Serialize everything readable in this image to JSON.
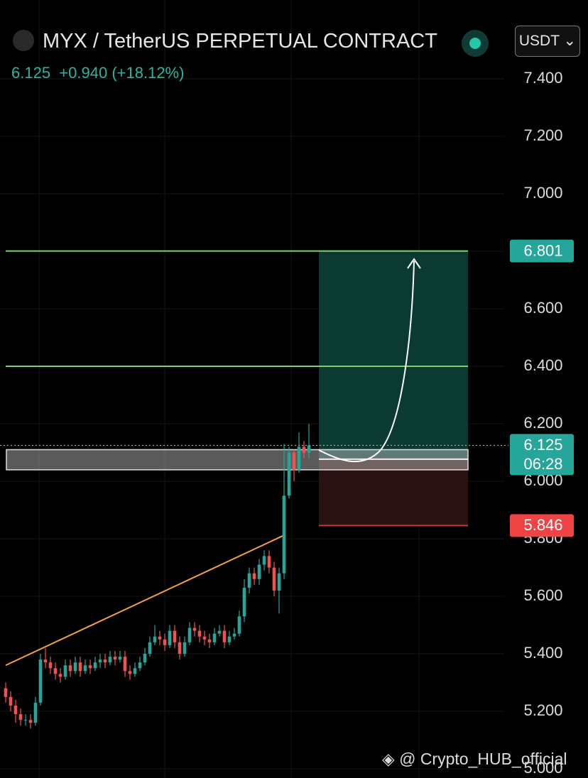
{
  "header": {
    "title": "MYX / TetherUS PERPETUAL CONTRACT",
    "price": 6.125,
    "change": "+0.940",
    "change_pct": "(+18.12%)",
    "currency": "USDT"
  },
  "watermark": "@ Crypto_HUB_official",
  "chart_data": {
    "type": "candlestick",
    "open": [
      5.28,
      5.25,
      5.22,
      5.19,
      5.17,
      5.17,
      5.16,
      5.23,
      5.38,
      5.37,
      5.35,
      5.33,
      5.32,
      5.36,
      5.34,
      5.37,
      5.34,
      5.36,
      5.35,
      5.37,
      5.38,
      5.37,
      5.39,
      5.38,
      5.39,
      5.34,
      5.33,
      5.35,
      5.37,
      5.4,
      5.44,
      5.46,
      5.45,
      5.43,
      5.48,
      5.44,
      5.4,
      5.44,
      5.49,
      5.48,
      5.46,
      5.45,
      5.44,
      5.47,
      5.48,
      5.44,
      5.46,
      5.47,
      5.53,
      5.63,
      5.68,
      5.66,
      5.71,
      5.74,
      5.7,
      5.62,
      5.68,
      5.95,
      6.1,
      6.04,
      6.12,
      6.1
    ],
    "high": [
      5.3,
      5.27,
      5.24,
      5.21,
      5.19,
      5.19,
      5.25,
      5.4,
      5.42,
      5.39,
      5.37,
      5.35,
      5.38,
      5.38,
      5.39,
      5.39,
      5.38,
      5.38,
      5.39,
      5.4,
      5.4,
      5.41,
      5.41,
      5.41,
      5.41,
      5.36,
      5.37,
      5.39,
      5.42,
      5.46,
      5.5,
      5.48,
      5.47,
      5.5,
      5.5,
      5.46,
      5.46,
      5.51,
      5.51,
      5.5,
      5.48,
      5.47,
      5.49,
      5.5,
      5.5,
      5.48,
      5.49,
      5.55,
      5.66,
      5.7,
      5.7,
      5.73,
      5.76,
      5.76,
      5.72,
      5.7,
      6.13,
      6.12,
      6.11,
      6.17,
      6.14,
      6.2
    ],
    "low": [
      5.23,
      5.2,
      5.16,
      5.15,
      5.15,
      5.14,
      5.15,
      5.22,
      5.35,
      5.33,
      5.31,
      5.3,
      5.31,
      5.32,
      5.33,
      5.32,
      5.33,
      5.33,
      5.34,
      5.35,
      5.35,
      5.36,
      5.36,
      5.37,
      5.32,
      5.31,
      5.32,
      5.34,
      5.36,
      5.39,
      5.43,
      5.43,
      5.41,
      5.42,
      5.42,
      5.38,
      5.39,
      5.43,
      5.46,
      5.44,
      5.43,
      5.42,
      5.43,
      5.46,
      5.42,
      5.43,
      5.45,
      5.46,
      5.51,
      5.61,
      5.64,
      5.64,
      5.69,
      5.68,
      5.6,
      5.54,
      5.66,
      5.94,
      6.0,
      6.03,
      6.08,
      6.08
    ],
    "close": [
      5.25,
      5.22,
      5.19,
      5.17,
      5.17,
      5.16,
      5.23,
      5.38,
      5.37,
      5.35,
      5.33,
      5.32,
      5.36,
      5.34,
      5.37,
      5.34,
      5.36,
      5.35,
      5.37,
      5.38,
      5.37,
      5.39,
      5.38,
      5.39,
      5.34,
      5.33,
      5.35,
      5.37,
      5.4,
      5.44,
      5.46,
      5.45,
      5.43,
      5.48,
      5.44,
      5.4,
      5.44,
      5.49,
      5.48,
      5.46,
      5.45,
      5.44,
      5.47,
      5.48,
      5.44,
      5.46,
      5.47,
      5.53,
      5.63,
      5.68,
      5.66,
      5.71,
      5.74,
      5.7,
      5.62,
      5.68,
      5.95,
      6.1,
      6.04,
      6.12,
      6.1,
      6.125
    ],
    "up_color": "#26a69a",
    "down_color": "#ef5350",
    "ylim": [
      4.968,
      7.674
    ],
    "yticks": [
      {
        "value": 5.0,
        "label": "5.000"
      },
      {
        "value": 5.2,
        "label": "5.200"
      },
      {
        "value": 5.4,
        "label": "5.400"
      },
      {
        "value": 5.6,
        "label": "5.600"
      },
      {
        "value": 5.8,
        "label": "5.800"
      },
      {
        "value": 6.0,
        "label": "6.000"
      },
      {
        "value": 6.2,
        "label": "6.200"
      },
      {
        "value": 6.4,
        "label": "6.400"
      },
      {
        "value": 6.6,
        "label": "6.600"
      },
      {
        "value": 6.8,
        "label": "6.800"
      },
      {
        "value": 7.0,
        "label": "7.000"
      },
      {
        "value": 7.2,
        "label": "7.200"
      },
      {
        "value": 7.4,
        "label": "7.400"
      }
    ],
    "grid": true,
    "hlines": [
      6.801,
      6.4
    ],
    "hline_color": "#7ed36a",
    "zone": [
      6.04,
      6.11
    ],
    "trendline": [
      5.36,
      5.81
    ],
    "trendline_color": "#f5a047",
    "position": {
      "target": 6.801,
      "entry": 6.077,
      "stop": 5.846
    },
    "countdown": "06:28"
  }
}
